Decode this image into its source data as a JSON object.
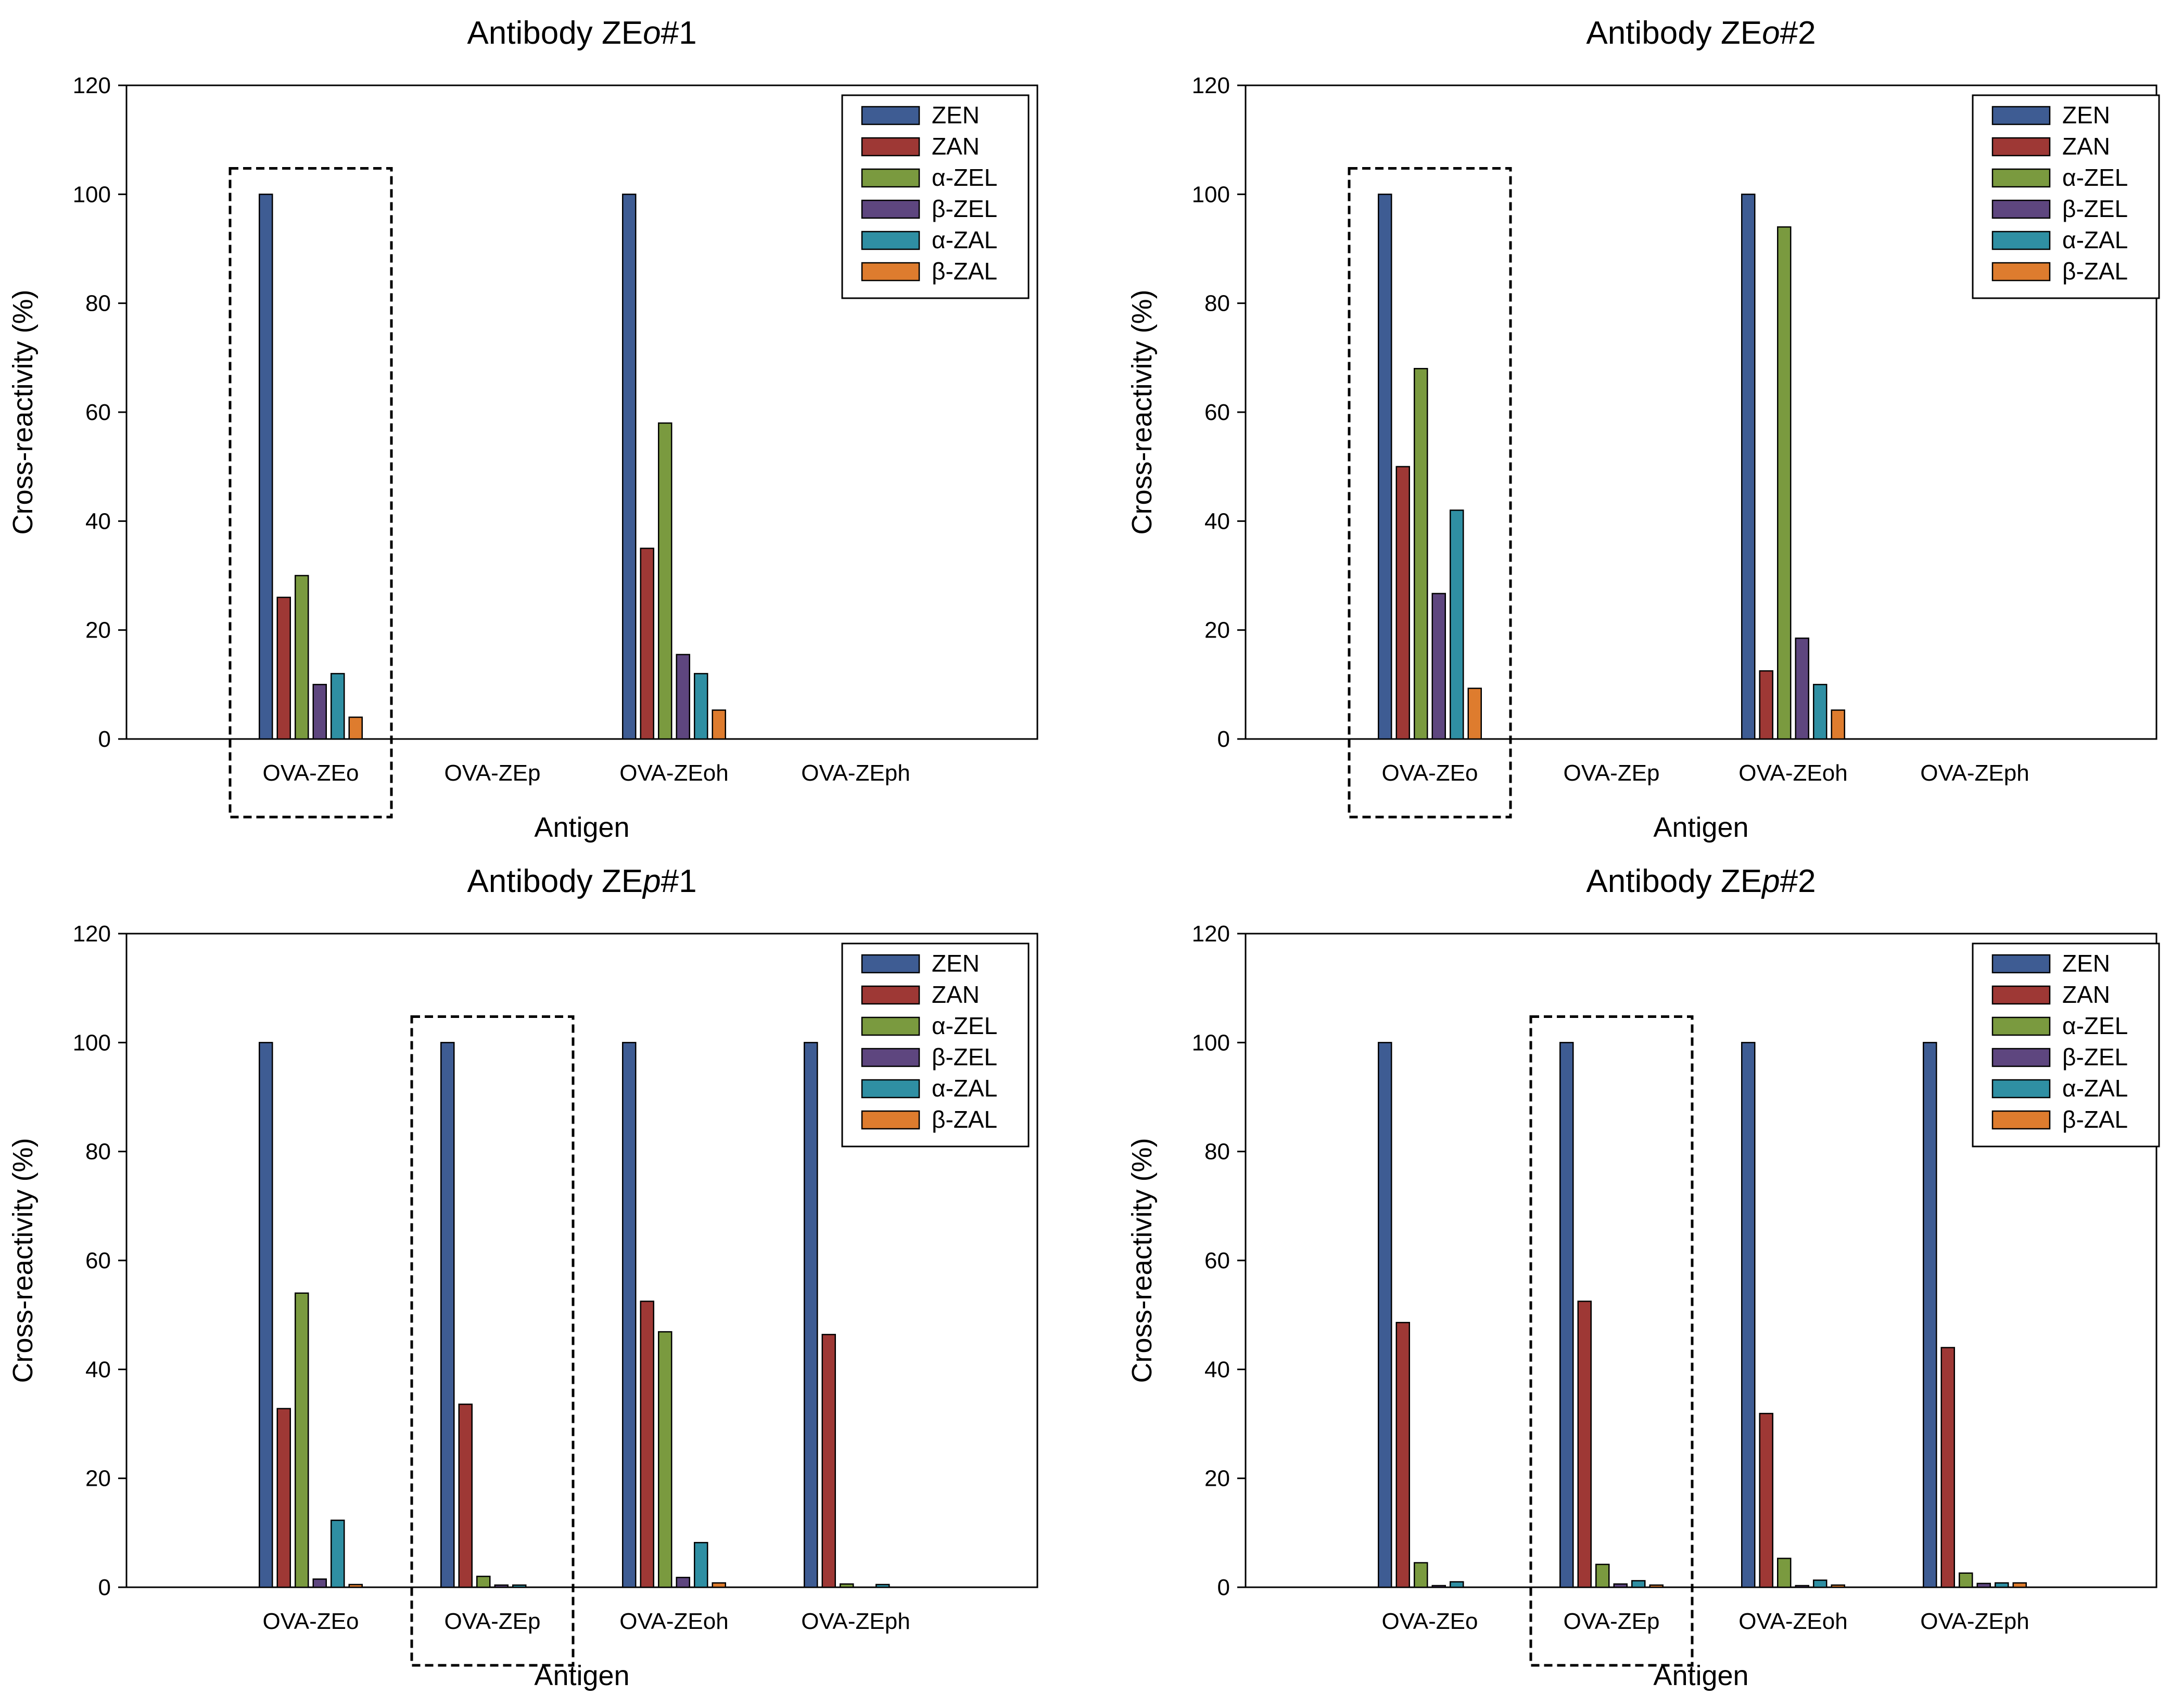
{
  "chart_data": [
    {
      "type": "bar",
      "title_prefix": "Antibody ZE",
      "title_italic": "o",
      "title_suffix": "#1",
      "xlabel": "Antigen",
      "ylabel": "Cross-reactivity (%)",
      "ylim": [
        0,
        120
      ],
      "yticks": [
        "0",
        "20",
        "40",
        "60",
        "80",
        "100",
        "120"
      ],
      "categories": [
        "OVA-ZEo",
        "OVA-ZEp",
        "OVA-ZEoh",
        "OVA-ZEph"
      ],
      "highlighted_category": "OVA-ZEo",
      "series": [
        {
          "name": "ZEN",
          "values": [
            100,
            null,
            100,
            null
          ]
        },
        {
          "name": "ZAN",
          "values": [
            26,
            null,
            35,
            null
          ]
        },
        {
          "name": "α-ZEL",
          "values": [
            30,
            null,
            58,
            null
          ]
        },
        {
          "name": "β-ZEL",
          "values": [
            10,
            null,
            15.5,
            null
          ]
        },
        {
          "name": "α-ZAL",
          "values": [
            12,
            null,
            12,
            null
          ]
        },
        {
          "name": "β-ZAL",
          "values": [
            4,
            null,
            5.3,
            null
          ]
        }
      ]
    },
    {
      "type": "bar",
      "title_prefix": "Antibody ZE",
      "title_italic": "o",
      "title_suffix": "#2",
      "xlabel": "Antigen",
      "ylabel": "Cross-reactivity (%)",
      "ylim": [
        0,
        120
      ],
      "yticks": [
        "0",
        "20",
        "40",
        "60",
        "80",
        "100",
        "120"
      ],
      "categories": [
        "OVA-ZEo",
        "OVA-ZEp",
        "OVA-ZEoh",
        "OVA-ZEph"
      ],
      "highlighted_category": "OVA-ZEo",
      "series": [
        {
          "name": "ZEN",
          "values": [
            100,
            null,
            100,
            null
          ]
        },
        {
          "name": "ZAN",
          "values": [
            50,
            null,
            12.5,
            null
          ]
        },
        {
          "name": "α-ZEL",
          "values": [
            68,
            null,
            94,
            null
          ]
        },
        {
          "name": "β-ZEL",
          "values": [
            26.7,
            null,
            18.5,
            null
          ]
        },
        {
          "name": "α-ZAL",
          "values": [
            42,
            null,
            10,
            null
          ]
        },
        {
          "name": "β-ZAL",
          "values": [
            9.3,
            null,
            5.3,
            null
          ]
        }
      ]
    },
    {
      "type": "bar",
      "title_prefix": "Antibody ZE",
      "title_italic": "p",
      "title_suffix": "#1",
      "xlabel": "Antigen",
      "ylabel": "Cross-reactivity (%)",
      "ylim": [
        0,
        120
      ],
      "yticks": [
        "0",
        "20",
        "40",
        "60",
        "80",
        "100",
        "120"
      ],
      "categories": [
        "OVA-ZEo",
        "OVA-ZEp",
        "OVA-ZEoh",
        "OVA-ZEph"
      ],
      "highlighted_category": "OVA-ZEp",
      "series": [
        {
          "name": "ZEN",
          "values": [
            100,
            100,
            100,
            100
          ]
        },
        {
          "name": "ZAN",
          "values": [
            32.8,
            33.6,
            52.5,
            46.4
          ]
        },
        {
          "name": "α-ZEL",
          "values": [
            54,
            2,
            46.9,
            0.6
          ]
        },
        {
          "name": "β-ZEL",
          "values": [
            1.5,
            0.4,
            1.8,
            0
          ]
        },
        {
          "name": "α-ZAL",
          "values": [
            12.3,
            0.4,
            8.2,
            0.5
          ]
        },
        {
          "name": "β-ZAL",
          "values": [
            0.5,
            0,
            0.8,
            0
          ]
        }
      ]
    },
    {
      "type": "bar",
      "title_prefix": "Antibody ZE",
      "title_italic": "p",
      "title_suffix": "#2",
      "xlabel": "Antigen",
      "ylabel": "Cross-reactivity (%)",
      "ylim": [
        0,
        120
      ],
      "yticks": [
        "0",
        "20",
        "40",
        "60",
        "80",
        "100",
        "120"
      ],
      "categories": [
        "OVA-ZEo",
        "OVA-ZEp",
        "OVA-ZEoh",
        "OVA-ZEph"
      ],
      "highlighted_category": "OVA-ZEp",
      "series": [
        {
          "name": "ZEN",
          "values": [
            100,
            100,
            100,
            100
          ]
        },
        {
          "name": "ZAN",
          "values": [
            48.6,
            52.5,
            31.9,
            44
          ]
        },
        {
          "name": "α-ZEL",
          "values": [
            4.5,
            4.2,
            5.3,
            2.6
          ]
        },
        {
          "name": "β-ZEL",
          "values": [
            0.3,
            0.6,
            0.3,
            0.7
          ]
        },
        {
          "name": "α-ZAL",
          "values": [
            1,
            1.2,
            1.3,
            0.8
          ]
        },
        {
          "name": "β-ZAL",
          "values": [
            0,
            0.4,
            0.4,
            0.8
          ]
        }
      ]
    }
  ],
  "colors": {
    "ZEN": "#3E5C93",
    "ZAN": "#9E3835",
    "α-ZEL": "#7A9A3F",
    "β-ZEL": "#5E467F",
    "α-ZAL": "#2F8FA3",
    "β-ZAL": "#DE7C2E"
  }
}
